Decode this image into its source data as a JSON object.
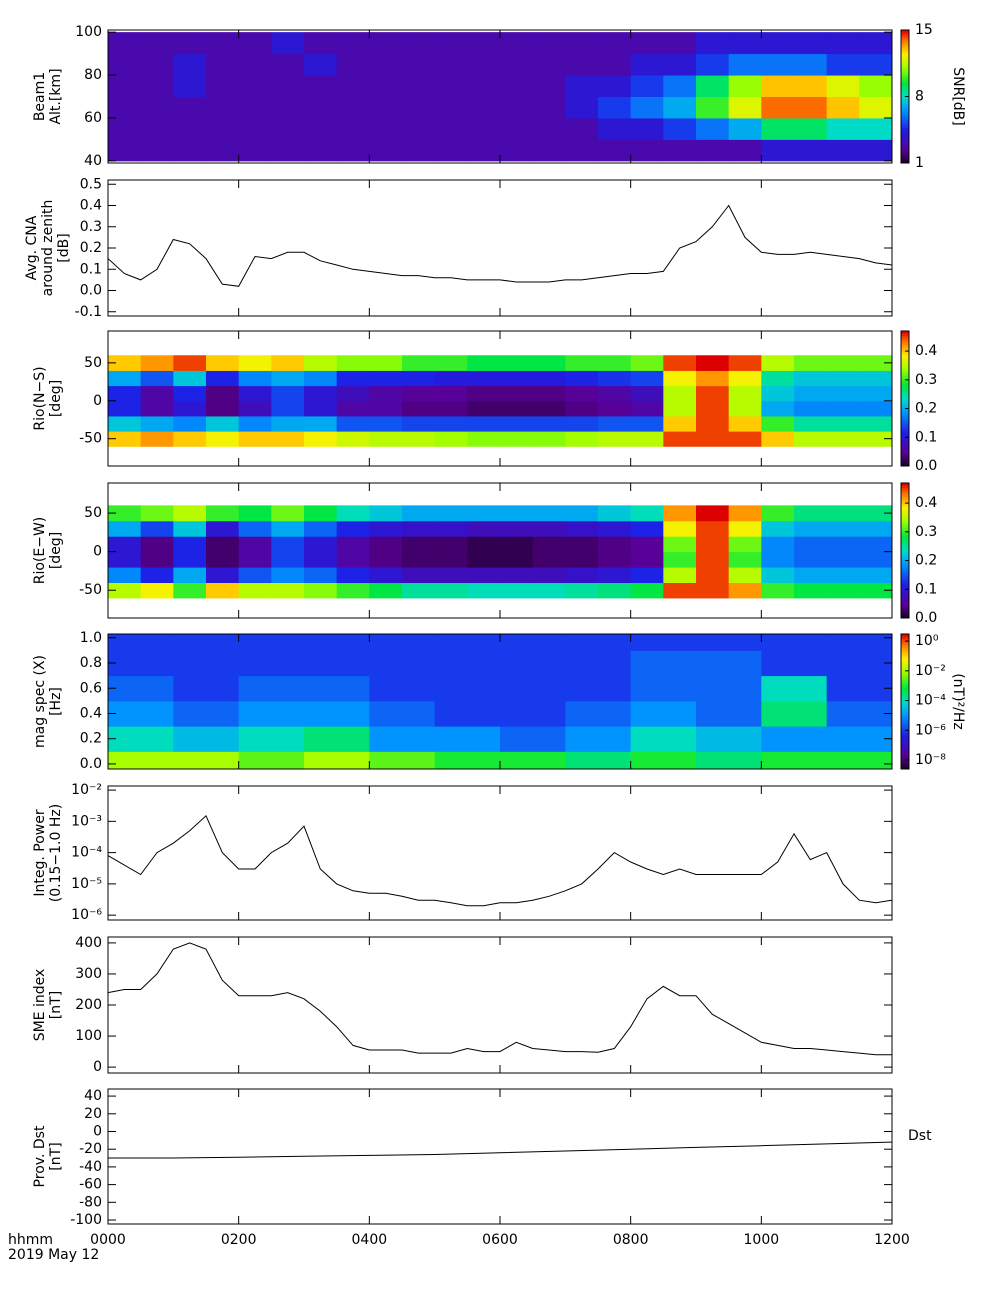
{
  "xaxis": {
    "xlim": [
      0,
      12
    ],
    "xticks": [
      {
        "value": 0,
        "label": "0000"
      },
      {
        "value": 2,
        "label": "0200"
      },
      {
        "value": 4,
        "label": "0400"
      },
      {
        "value": 6,
        "label": "0600"
      },
      {
        "value": 8,
        "label": "0800"
      },
      {
        "value": 10,
        "label": "1000"
      },
      {
        "value": 12,
        "label": "1200"
      }
    ],
    "xlabel": [
      "hhmm",
      "2019 May 12"
    ]
  },
  "chart_data": [
    {
      "type": "heatmap",
      "ylabel": [
        "Beam1",
        "Alt.[km]"
      ],
      "ylim": [
        39,
        101
      ],
      "yticks": [
        40,
        60,
        80,
        100
      ],
      "x": [
        0.25,
        0.75,
        1.25,
        1.75,
        2.25,
        2.75,
        3.25,
        3.75,
        4.25,
        4.75,
        5.25,
        5.75,
        6.25,
        6.75,
        7.25,
        7.75,
        8.25,
        8.75,
        9.25,
        9.75,
        10.25,
        10.75,
        11.25,
        11.75
      ],
      "y": [
        45,
        55,
        65,
        75,
        85,
        95
      ],
      "z": [
        [
          3,
          3,
          3,
          3,
          3,
          3,
          3,
          3,
          3,
          3,
          3,
          3,
          3,
          3,
          3,
          3,
          3,
          3,
          3,
          3,
          4,
          4,
          4,
          4
        ],
        [
          3,
          3,
          3,
          3,
          3,
          3,
          3,
          3,
          3,
          3,
          3,
          3,
          3,
          3,
          3,
          4,
          4,
          5,
          6,
          7,
          9,
          9,
          8,
          8
        ],
        [
          3,
          3,
          3,
          3,
          3,
          3,
          3,
          3,
          3,
          3,
          3,
          3,
          3,
          3,
          4,
          5,
          6,
          7,
          10,
          12,
          14,
          14,
          13,
          12
        ],
        [
          3,
          3,
          4,
          3,
          3,
          3,
          3,
          3,
          3,
          3,
          3,
          3,
          3,
          3,
          4,
          4,
          5,
          6,
          9,
          11,
          13,
          13,
          12,
          11
        ],
        [
          3,
          3,
          4,
          3,
          3,
          3,
          4,
          3,
          3,
          3,
          3,
          3,
          3,
          3,
          3,
          3,
          4,
          4,
          5,
          6,
          6,
          6,
          5,
          5
        ],
        [
          3,
          3,
          3,
          3,
          3,
          4,
          3,
          3,
          3,
          3,
          3,
          3,
          3,
          3,
          3,
          3,
          3,
          3,
          4,
          4,
          4,
          4,
          4,
          4
        ]
      ],
      "colorbar": {
        "label": "SNR[dB]",
        "zlim": [
          1,
          15
        ],
        "ticks": [
          1,
          8,
          15
        ]
      }
    },
    {
      "type": "line",
      "ylabel": [
        "Avg. CNA",
        "around zenith",
        "[dB]"
      ],
      "ylim": [
        -0.12,
        0.52
      ],
      "yticks": [
        -0.1,
        {
          "value": 0,
          "label": "0.0"
        },
        0.1,
        0.2,
        0.3,
        0.4,
        0.5
      ],
      "color": "#000000",
      "x": [
        0,
        0.25,
        0.5,
        0.75,
        1,
        1.25,
        1.5,
        1.75,
        2,
        2.25,
        2.5,
        2.75,
        3,
        3.25,
        3.5,
        3.75,
        4,
        4.25,
        4.5,
        4.75,
        5,
        5.25,
        5.5,
        5.75,
        6,
        6.25,
        6.5,
        6.75,
        7,
        7.25,
        7.5,
        7.75,
        8,
        8.25,
        8.5,
        8.75,
        9,
        9.25,
        9.5,
        9.75,
        10,
        10.25,
        10.5,
        10.75,
        11,
        11.25,
        11.5,
        11.75,
        12
      ],
      "values": [
        0.15,
        0.08,
        0.05,
        0.1,
        0.24,
        0.22,
        0.15,
        0.03,
        0.02,
        0.16,
        0.15,
        0.18,
        0.18,
        0.14,
        0.12,
        0.1,
        0.09,
        0.08,
        0.07,
        0.07,
        0.06,
        0.06,
        0.05,
        0.05,
        0.05,
        0.04,
        0.04,
        0.04,
        0.05,
        0.05,
        0.06,
        0.07,
        0.08,
        0.08,
        0.09,
        0.2,
        0.23,
        0.3,
        0.4,
        0.25,
        0.18,
        0.17,
        0.17,
        0.18,
        0.17,
        0.16,
        0.15,
        0.13,
        0.12
      ]
    },
    {
      "type": "heatmap",
      "ylabel": [
        "Rio(N−S)",
        "[deg]"
      ],
      "ylim": [
        -86,
        92
      ],
      "yticks": [
        -50,
        0,
        50
      ],
      "x": [
        0.25,
        0.75,
        1.25,
        1.75,
        2.25,
        2.75,
        3.25,
        3.75,
        4.25,
        4.75,
        5.25,
        5.75,
        6.25,
        6.75,
        7.25,
        7.75,
        8.25,
        8.75,
        9.25,
        9.75,
        10.25,
        10.75,
        11.25,
        11.75
      ],
      "y": [
        -50,
        -30,
        -10,
        10,
        30,
        50
      ],
      "z": [
        [
          0.4,
          0.42,
          0.4,
          0.38,
          0.4,
          0.4,
          0.38,
          0.36,
          0.35,
          0.35,
          0.34,
          0.33,
          0.33,
          0.33,
          0.34,
          0.35,
          0.35,
          0.45,
          0.45,
          0.45,
          0.4,
          0.35,
          0.35,
          0.35
        ],
        [
          0.22,
          0.2,
          0.18,
          0.22,
          0.18,
          0.2,
          0.2,
          0.15,
          0.15,
          0.14,
          0.14,
          0.14,
          0.14,
          0.14,
          0.14,
          0.15,
          0.15,
          0.4,
          0.45,
          0.4,
          0.3,
          0.25,
          0.25,
          0.25
        ],
        [
          0.12,
          0.06,
          0.1,
          0.04,
          0.08,
          0.14,
          0.1,
          0.06,
          0.06,
          0.04,
          0.04,
          0.03,
          0.03,
          0.03,
          0.04,
          0.05,
          0.06,
          0.35,
          0.45,
          0.35,
          0.2,
          0.18,
          0.18,
          0.18
        ],
        [
          0.12,
          0.06,
          0.12,
          0.04,
          0.1,
          0.14,
          0.1,
          0.08,
          0.06,
          0.05,
          0.05,
          0.04,
          0.04,
          0.04,
          0.05,
          0.06,
          0.08,
          0.35,
          0.45,
          0.35,
          0.22,
          0.2,
          0.2,
          0.2
        ],
        [
          0.2,
          0.15,
          0.22,
          0.12,
          0.18,
          0.2,
          0.18,
          0.12,
          0.12,
          0.12,
          0.11,
          0.11,
          0.11,
          0.11,
          0.12,
          0.13,
          0.14,
          0.38,
          0.42,
          0.38,
          0.25,
          0.22,
          0.22,
          0.22
        ],
        [
          0.4,
          0.42,
          0.45,
          0.4,
          0.38,
          0.4,
          0.35,
          0.33,
          0.33,
          0.3,
          0.3,
          0.28,
          0.28,
          0.28,
          0.3,
          0.3,
          0.32,
          0.45,
          0.47,
          0.45,
          0.35,
          0.32,
          0.32,
          0.32
        ]
      ],
      "colorbar": {
        "zlim": [
          0,
          0.47
        ],
        "ticks": [
          {
            "value": 0,
            "label": "0.0"
          },
          0.1,
          0.2,
          0.3,
          0.4
        ]
      }
    },
    {
      "type": "heatmap",
      "ylabel": [
        "Rio(E−W)",
        "[deg]"
      ],
      "ylim": [
        -86,
        89
      ],
      "yticks": [
        -50,
        0,
        50
      ],
      "x": [
        0.25,
        0.75,
        1.25,
        1.75,
        2.25,
        2.75,
        3.25,
        3.75,
        4.25,
        4.75,
        5.25,
        5.75,
        6.25,
        6.75,
        7.25,
        7.75,
        8.25,
        8.75,
        9.25,
        9.75,
        10.25,
        10.75,
        11.25,
        11.75
      ],
      "y": [
        -50,
        -30,
        -10,
        10,
        30,
        50
      ],
      "z": [
        [
          0.35,
          0.38,
          0.3,
          0.4,
          0.35,
          0.35,
          0.33,
          0.3,
          0.28,
          0.25,
          0.25,
          0.24,
          0.24,
          0.24,
          0.25,
          0.26,
          0.28,
          0.45,
          0.45,
          0.42,
          0.3,
          0.28,
          0.28,
          0.28
        ],
        [
          0.18,
          0.12,
          0.2,
          0.1,
          0.15,
          0.18,
          0.16,
          0.12,
          0.1,
          0.08,
          0.08,
          0.08,
          0.08,
          0.08,
          0.09,
          0.1,
          0.12,
          0.35,
          0.45,
          0.35,
          0.22,
          0.2,
          0.2,
          0.2
        ],
        [
          0.1,
          0.04,
          0.12,
          0.03,
          0.06,
          0.14,
          0.1,
          0.06,
          0.04,
          0.03,
          0.03,
          0.02,
          0.02,
          0.03,
          0.03,
          0.04,
          0.05,
          0.3,
          0.45,
          0.3,
          0.18,
          0.16,
          0.16,
          0.16
        ],
        [
          0.1,
          0.04,
          0.12,
          0.03,
          0.06,
          0.14,
          0.1,
          0.06,
          0.04,
          0.03,
          0.03,
          0.02,
          0.02,
          0.03,
          0.03,
          0.04,
          0.05,
          0.32,
          0.45,
          0.32,
          0.18,
          0.16,
          0.16,
          0.16
        ],
        [
          0.2,
          0.14,
          0.22,
          0.1,
          0.16,
          0.2,
          0.16,
          0.12,
          0.1,
          0.09,
          0.09,
          0.08,
          0.08,
          0.08,
          0.09,
          0.1,
          0.12,
          0.38,
          0.45,
          0.38,
          0.22,
          0.2,
          0.2,
          0.2
        ],
        [
          0.3,
          0.32,
          0.35,
          0.3,
          0.28,
          0.32,
          0.28,
          0.24,
          0.22,
          0.2,
          0.2,
          0.2,
          0.2,
          0.2,
          0.2,
          0.22,
          0.24,
          0.42,
          0.47,
          0.42,
          0.3,
          0.26,
          0.26,
          0.26
        ]
      ],
      "colorbar": {
        "zlim": [
          0,
          0.47
        ],
        "ticks": [
          {
            "value": 0,
            "label": "0.0"
          },
          0.1,
          0.2,
          0.3,
          0.4
        ]
      }
    },
    {
      "type": "heatmap",
      "ylabel": [
        "mag spec (X)",
        "[Hz]"
      ],
      "ylim": [
        -0.04,
        1.03
      ],
      "yticks": [
        {
          "value": 0,
          "label": "0.0"
        },
        0.2,
        0.4,
        0.6,
        0.8,
        {
          "value": 1,
          "label": "1.0"
        }
      ],
      "x": [
        0.5,
        1.5,
        2.5,
        3.5,
        4.5,
        5.5,
        6.5,
        7.5,
        8.5,
        9.5,
        10.5,
        11.5
      ],
      "y": [
        0,
        0.2,
        0.4,
        0.6,
        0.8,
        1.0
      ],
      "z": [
        [
          0.01,
          0.01,
          0.003,
          0.01,
          0.003,
          0.001,
          0.001,
          0.0003,
          0.001,
          0.0003,
          0.001,
          0.001
        ],
        [
          0.0001,
          3e-05,
          0.0001,
          0.0003,
          1e-05,
          1e-05,
          3e-06,
          1e-05,
          0.0001,
          3e-05,
          1e-05,
          1e-05
        ],
        [
          1e-05,
          3e-06,
          1e-05,
          1e-05,
          3e-06,
          1e-06,
          1e-06,
          3e-06,
          1e-05,
          3e-06,
          0.0003,
          3e-06
        ],
        [
          3e-06,
          1e-06,
          3e-06,
          3e-06,
          1e-06,
          1e-06,
          1e-06,
          1e-06,
          3e-06,
          3e-06,
          0.0001,
          1e-06
        ],
        [
          1e-06,
          1e-06,
          1e-06,
          1e-06,
          1e-06,
          1e-06,
          1e-06,
          1e-06,
          3e-06,
          3e-06,
          1e-06,
          1e-06
        ],
        [
          1e-06,
          1e-06,
          1e-06,
          1e-06,
          1e-06,
          1e-06,
          1e-06,
          1e-06,
          1e-06,
          1e-06,
          1e-06,
          1e-06
        ]
      ],
      "colorbar": {
        "label": "(nT)²/Hz",
        "log": true,
        "zlim": [
          2.5e-09,
          3
        ],
        "ticks": [
          {
            "value": 1e-08,
            "label": "10⁻⁸"
          },
          {
            "value": 1e-06,
            "label": "10⁻⁶"
          },
          {
            "value": 0.0001,
            "label": "10⁻⁴"
          },
          {
            "value": 0.01,
            "label": "10⁻²"
          },
          {
            "value": 1,
            "label": "10⁰"
          }
        ]
      }
    },
    {
      "type": "line",
      "ylabel": [
        "Integ. Power",
        "(0.15−1.0 Hz)"
      ],
      "ylog": true,
      "ylim": [
        7e-07,
        0.0135
      ],
      "yticks": [
        {
          "value": 1e-06,
          "label": "10⁻⁶"
        },
        {
          "value": 1e-05,
          "label": "10⁻⁵"
        },
        {
          "value": 0.0001,
          "label": "10⁻⁴"
        },
        {
          "value": 0.001,
          "label": "10⁻³"
        },
        {
          "value": 0.01,
          "label": "10⁻²"
        }
      ],
      "color": "#000000",
      "x": [
        0,
        0.25,
        0.5,
        0.75,
        1,
        1.25,
        1.5,
        1.75,
        2,
        2.25,
        2.5,
        2.75,
        3,
        3.25,
        3.5,
        3.75,
        4,
        4.25,
        4.5,
        4.75,
        5,
        5.25,
        5.5,
        5.75,
        6,
        6.25,
        6.5,
        6.75,
        7,
        7.25,
        7.5,
        7.75,
        8,
        8.25,
        8.5,
        8.75,
        9,
        9.25,
        9.5,
        9.75,
        10,
        10.25,
        10.5,
        10.75,
        11,
        11.25,
        11.5,
        11.75,
        12
      ],
      "values": [
        8e-05,
        4e-05,
        2e-05,
        0.0001,
        0.0002,
        0.0005,
        0.0015,
        0.0001,
        3e-05,
        3e-05,
        0.0001,
        0.0002,
        0.0007,
        3e-05,
        1e-05,
        6e-06,
        5e-06,
        5e-06,
        4e-06,
        3e-06,
        3e-06,
        2.5e-06,
        2e-06,
        2e-06,
        2.5e-06,
        2.5e-06,
        3e-06,
        4e-06,
        6e-06,
        1e-05,
        3e-05,
        0.0001,
        5e-05,
        3e-05,
        2e-05,
        3e-05,
        2e-05,
        2e-05,
        2e-05,
        2e-05,
        2e-05,
        5e-05,
        0.0004,
        6e-05,
        0.0001,
        1e-05,
        3e-06,
        2.5e-06,
        3e-06
      ]
    },
    {
      "type": "line",
      "ylabel": [
        "SME index",
        "[nT]"
      ],
      "ylim": [
        -19,
        419
      ],
      "yticks": [
        0,
        100,
        200,
        300,
        400
      ],
      "color": "#000000",
      "x": [
        0,
        0.25,
        0.5,
        0.75,
        1,
        1.25,
        1.5,
        1.75,
        2,
        2.25,
        2.5,
        2.75,
        3,
        3.25,
        3.5,
        3.75,
        4,
        4.25,
        4.5,
        4.75,
        5,
        5.25,
        5.5,
        5.75,
        6,
        6.25,
        6.5,
        6.75,
        7,
        7.25,
        7.5,
        7.75,
        8,
        8.25,
        8.5,
        8.75,
        9,
        9.25,
        9.5,
        9.75,
        10,
        10.25,
        10.5,
        10.75,
        11,
        11.25,
        11.5,
        11.75,
        12
      ],
      "values": [
        240,
        250,
        250,
        300,
        380,
        400,
        380,
        280,
        230,
        230,
        230,
        240,
        220,
        180,
        130,
        70,
        55,
        55,
        55,
        45,
        45,
        45,
        60,
        50,
        50,
        80,
        60,
        55,
        50,
        50,
        48,
        60,
        130,
        220,
        260,
        230,
        230,
        170,
        140,
        110,
        80,
        70,
        60,
        60,
        55,
        50,
        45,
        40,
        40
      ]
    },
    {
      "type": "line",
      "ylabel": [
        "Prov. Dst",
        "[nT]"
      ],
      "ylim": [
        -104.5,
        48
      ],
      "yticks": [
        -100,
        -80,
        -60,
        -40,
        -20,
        0,
        20,
        40
      ],
      "color": "#000000",
      "series_label": "Dst",
      "x": [
        0,
        1,
        2,
        3,
        4,
        5,
        6,
        7,
        8,
        9,
        10,
        11,
        12
      ],
      "values": [
        -30,
        -30,
        -29,
        -28,
        -27,
        -26,
        -24,
        -22,
        -20,
        -18,
        -16,
        -14,
        -12
      ]
    }
  ]
}
